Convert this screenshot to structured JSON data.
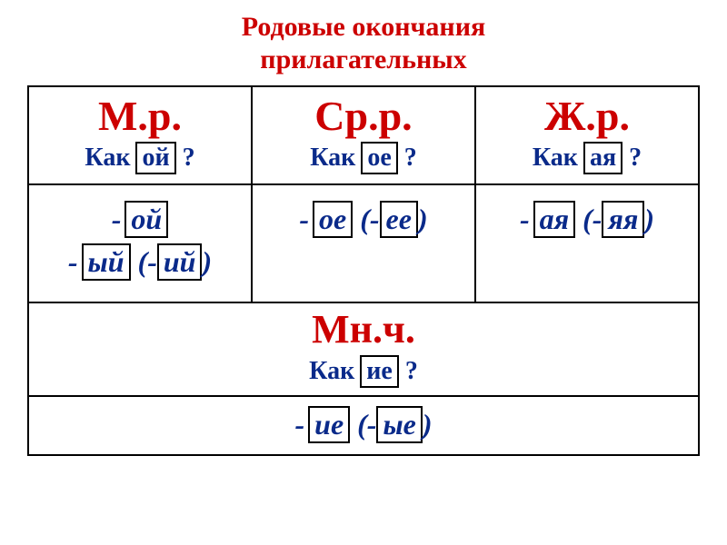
{
  "colors": {
    "title": "#cc0000",
    "header_red": "#cc0000",
    "question_blue": "#0a2a8a",
    "box_text": "#000000",
    "plural_red": "#cc0000",
    "body_text": "#000000"
  },
  "title": {
    "line1": "Родовые  окончания",
    "line2": "прилагательных"
  },
  "genders": {
    "m": {
      "label": "М.р.",
      "q_prefix": "Как",
      "q_box": "ой",
      "q_suffix": "?",
      "line1_box": "ой",
      "line2_pre": "ый",
      "line2_alt": "ий"
    },
    "n": {
      "label": "Ср.р.",
      "q_prefix": "Как",
      "q_box": "ое",
      "q_suffix": "?",
      "line1_box": "ое",
      "line1_alt": "ее"
    },
    "f": {
      "label": "Ж.р.",
      "q_prefix": "Как",
      "q_box": "ая",
      "q_suffix": "?",
      "line1_box": "ая",
      "line1_alt": "яя"
    }
  },
  "plural": {
    "label": "Мн.ч.",
    "q_prefix": "Как",
    "q_box": "ие",
    "q_suffix": "?",
    "line_box": "ие",
    "line_alt": "ые"
  }
}
